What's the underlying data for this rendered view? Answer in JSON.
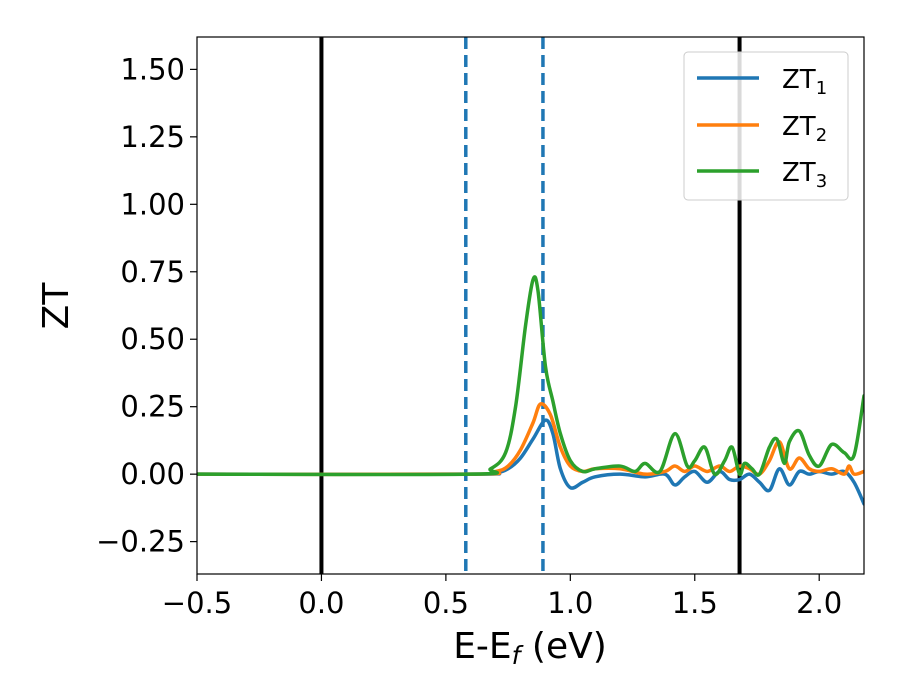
{
  "chart_data": {
    "type": "line",
    "title": "",
    "xlabel": {
      "main": "E-E",
      "sub": "f",
      "suffix": " (eV)"
    },
    "ylabel": "ZT",
    "xlim": [
      -0.5,
      2.18
    ],
    "ylim": [
      -0.37,
      1.62
    ],
    "xticks": [
      -0.5,
      0.0,
      0.5,
      1.0,
      1.5,
      2.0
    ],
    "xtick_labels": [
      "−0.5",
      "0.0",
      "0.5",
      "1.0",
      "1.5",
      "2.0"
    ],
    "yticks": [
      -0.25,
      0.0,
      0.25,
      0.5,
      0.75,
      1.0,
      1.25,
      1.5
    ],
    "ytick_labels": [
      "−0.25",
      "0.00",
      "0.25",
      "0.50",
      "0.75",
      "1.00",
      "1.25",
      "1.50"
    ],
    "grid": false,
    "legend": "top-right",
    "vlines": [
      {
        "x": 0.0,
        "color": "#000000",
        "style": "solid"
      },
      {
        "x": 1.68,
        "color": "#000000",
        "style": "solid"
      },
      {
        "x": 0.58,
        "color": "#1f77b4",
        "style": "dashed"
      },
      {
        "x": 0.89,
        "color": "#1f77b4",
        "style": "dashed"
      }
    ],
    "series": [
      {
        "name": "ZT",
        "sub": "1",
        "color": "#1f77b4",
        "x": [
          -0.5,
          0.6,
          0.7,
          0.75,
          0.8,
          0.85,
          0.9,
          0.93,
          0.96,
          1.0,
          1.05,
          1.1,
          1.2,
          1.3,
          1.38,
          1.42,
          1.46,
          1.5,
          1.55,
          1.6,
          1.64,
          1.68,
          1.72,
          1.76,
          1.8,
          1.84,
          1.88,
          1.92,
          1.96,
          2.0,
          2.05,
          2.1,
          2.14,
          2.18
        ],
        "values": [
          0.0,
          0.0,
          0.005,
          0.02,
          0.06,
          0.13,
          0.2,
          0.15,
          0.02,
          -0.05,
          -0.03,
          -0.01,
          0.0,
          -0.01,
          0.0,
          -0.04,
          -0.01,
          0.01,
          -0.03,
          0.01,
          -0.02,
          -0.02,
          0.0,
          -0.03,
          -0.06,
          0.02,
          -0.04,
          0.01,
          0.0,
          0.01,
          0.0,
          0.01,
          -0.03,
          -0.11
        ]
      },
      {
        "name": "ZT",
        "sub": "2",
        "color": "#ff7f0e",
        "x": [
          -0.5,
          0.6,
          0.7,
          0.75,
          0.8,
          0.85,
          0.88,
          0.92,
          0.96,
          1.0,
          1.05,
          1.1,
          1.2,
          1.3,
          1.38,
          1.42,
          1.46,
          1.5,
          1.55,
          1.6,
          1.64,
          1.68,
          1.72,
          1.76,
          1.8,
          1.84,
          1.88,
          1.92,
          1.96,
          2.0,
          2.05,
          2.1,
          2.12,
          2.14,
          2.18
        ],
        "values": [
          0.0,
          0.0,
          0.01,
          0.03,
          0.09,
          0.19,
          0.26,
          0.22,
          0.1,
          0.03,
          0.01,
          0.02,
          0.02,
          0.0,
          0.01,
          0.03,
          0.01,
          0.03,
          0.01,
          0.03,
          0.01,
          0.03,
          0.02,
          0.0,
          0.05,
          0.12,
          0.02,
          0.06,
          0.02,
          0.01,
          0.02,
          0.0,
          0.03,
          0.0,
          0.01
        ]
      },
      {
        "name": "ZT",
        "sub": "3",
        "color": "#2ca02c",
        "x": [
          -0.5,
          0.6,
          0.68,
          0.74,
          0.78,
          0.82,
          0.85,
          0.87,
          0.9,
          0.93,
          0.96,
          1.0,
          1.05,
          1.1,
          1.2,
          1.26,
          1.3,
          1.36,
          1.42,
          1.47,
          1.5,
          1.54,
          1.58,
          1.62,
          1.65,
          1.68,
          1.7,
          1.73,
          1.76,
          1.8,
          1.83,
          1.86,
          1.88,
          1.92,
          1.96,
          2.0,
          2.05,
          2.1,
          2.14,
          2.18
        ],
        "values": [
          0.0,
          0.0,
          0.02,
          0.08,
          0.25,
          0.55,
          0.72,
          0.68,
          0.4,
          0.27,
          0.15,
          0.05,
          0.01,
          0.02,
          0.03,
          0.01,
          0.04,
          0.01,
          0.15,
          0.03,
          0.05,
          0.1,
          0.0,
          0.05,
          0.1,
          0.0,
          0.04,
          0.02,
          0.0,
          0.1,
          0.13,
          0.04,
          0.12,
          0.16,
          0.07,
          0.03,
          0.11,
          0.08,
          0.07,
          0.29
        ]
      }
    ]
  }
}
